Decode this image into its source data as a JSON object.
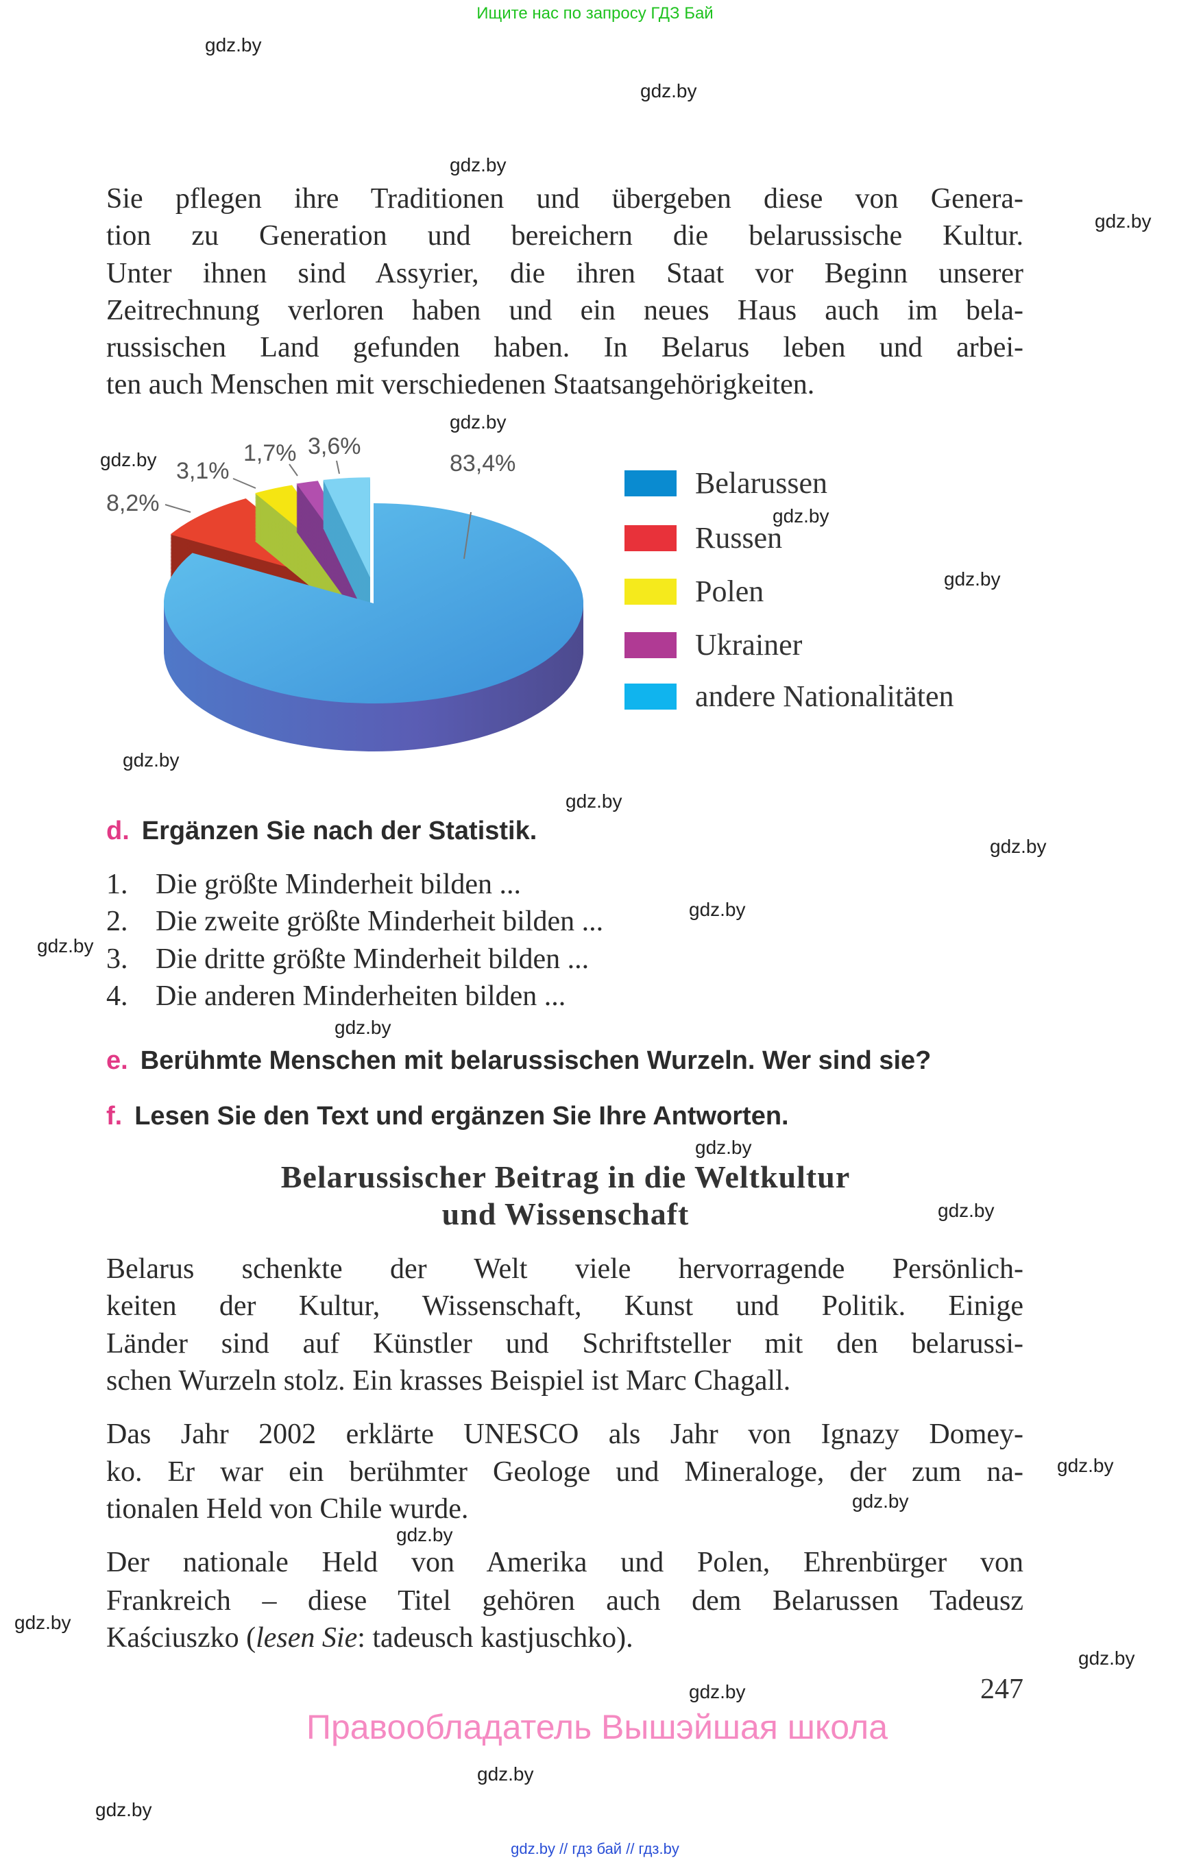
{
  "top_note": "Ищите нас по запросу ГДЗ Бай",
  "intro_lines": [
    "Sie pflegen ihre Traditionen und übergeben diese von Genera-",
    "tion zu Generation und bereichern die belarussische Kultur.",
    "Unter ihnen sind Assyrier, die ihren Staat vor Beginn unserer",
    "Zeitrechnung verloren haben und ein neues Haus auch im bela-",
    "russischen Land gefunden haben. In Belarus leben und arbei-",
    "ten auch Menschen mit verschiedenen Staatsangehörigkeiten."
  ],
  "chart_data": {
    "type": "pie",
    "style": "3d-exploded",
    "categories": [
      "Belarussen",
      "Russen",
      "Polen",
      "Ukrainer",
      "andere Nationalitäten"
    ],
    "values": [
      83.4,
      8.2,
      3.1,
      1.7,
      3.6
    ],
    "labels": [
      "83,4%",
      "8,2%",
      "3,1%",
      "1,7%",
      "3,6%"
    ],
    "colors": [
      "#4fb4e8",
      "#e8432e",
      "#f5e512",
      "#b24fae",
      "#7fd3f3"
    ],
    "legend_colors": [
      "#0a8bd0",
      "#e8323a",
      "#f5ea1c",
      "#b03a94",
      "#10b4ee"
    ],
    "legend_position": "right"
  },
  "tasks": {
    "d": {
      "letter": "d.",
      "text": "Ergänzen Sie nach der Statistik."
    },
    "d_items": [
      {
        "num": "1.",
        "text": "Die größte Minderheit bilden ..."
      },
      {
        "num": "2.",
        "text": "Die zweite größte Minderheit bilden ..."
      },
      {
        "num": "3.",
        "text": "Die dritte größte Minderheit bilden ..."
      },
      {
        "num": "4.",
        "text": "Die anderen Minderheiten bilden ..."
      }
    ],
    "e": {
      "letter": "e.",
      "text": "Berühmte Menschen mit belarussischen Wurzeln. Wer sind sie?"
    },
    "f": {
      "letter": "f.",
      "text": "Lesen Sie den Text und ergänzen Sie Ihre Antworten."
    }
  },
  "article": {
    "title_lines": [
      "Belarussischer Beitrag in die Weltkultur",
      "und Wissenschaft"
    ],
    "p1": [
      "Belarus schenkte der Welt viele hervorragende Persönlich-",
      "keiten der Kultur, Wissenschaft, Kunst und Politik. Einige",
      "Länder sind auf Künstler und Schriftsteller mit den belarussi-",
      "schen Wurzeln stolz. Ein krasses Beispiel ist Marc Chagall."
    ],
    "p2": [
      "Das Jahr 2002 erklärte UNESCO als Jahr von Ignazy Domey-",
      "ko. Er war ein berühmter Geologe und Mineraloge, der zum na-",
      "tionalen Held von Chile wurde."
    ],
    "p3": [
      "Der nationale Held von Amerika und Polen, Ehrenbürger von",
      "Frankreich – diese Titel gehören auch dem Belarussen Tadeusz"
    ],
    "p3_last": {
      "before": "Kaściuszko (",
      "italic": "lesen Sie",
      "after": ": tadeusch kastjuschko)."
    }
  },
  "page_number": "247",
  "owner_note": "Правообладатель Вышэйшая школа",
  "footer": "gdz.by  //  гдз бай  //  гдз.by",
  "watermark_text": "gdz.by",
  "watermark_count": 24
}
